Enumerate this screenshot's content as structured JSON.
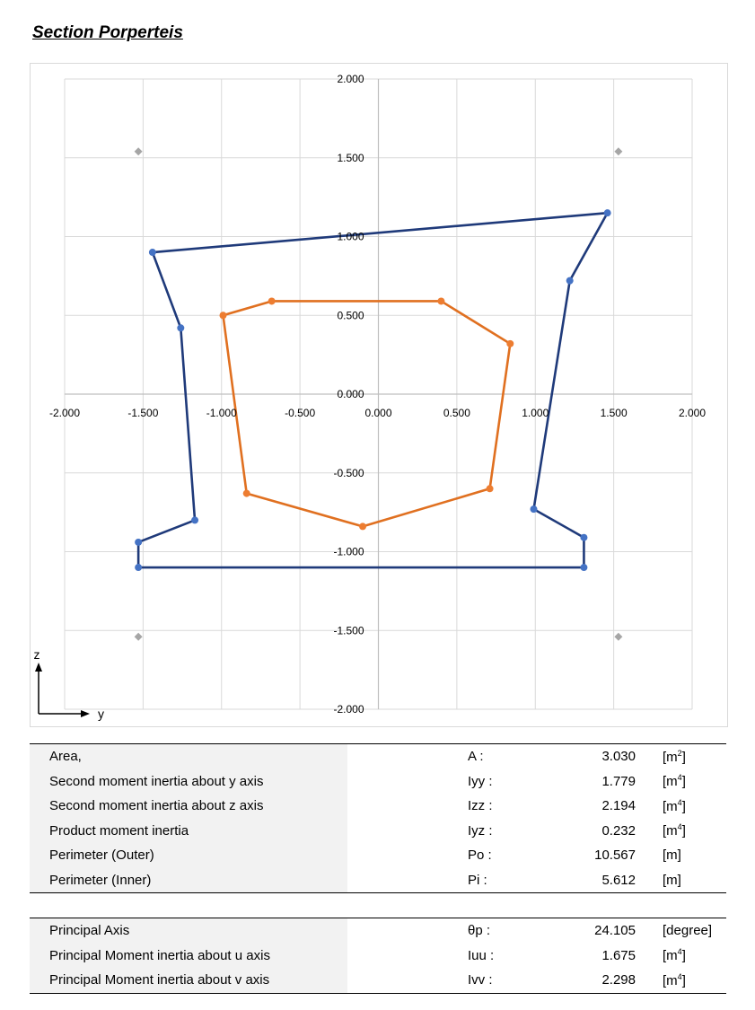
{
  "page_title": "Section Porperteis",
  "chart_data": {
    "type": "scatter",
    "title": "",
    "xlabel": "",
    "ylabel": "",
    "xlim": [
      -2.0,
      2.0
    ],
    "ylim": [
      -2.0,
      2.0
    ],
    "x_ticks": [
      "-2.000",
      "-1.500",
      "-1.000",
      "-0.500",
      "0.000",
      "0.500",
      "1.000",
      "1.500",
      "2.000"
    ],
    "y_ticks": [
      "2.000",
      "1.500",
      "1.000",
      "0.500",
      "0.000",
      "-0.500",
      "-1.000",
      "-1.500",
      "-2.000"
    ],
    "grid": true,
    "series": [
      {
        "color": "#1f3a7a",
        "marker_color": "#4472c4",
        "closed": true,
        "points": [
          [
            -1.44,
            0.9
          ],
          [
            1.46,
            1.15
          ],
          [
            1.22,
            0.72
          ],
          [
            0.99,
            -0.73
          ],
          [
            1.31,
            -0.91
          ],
          [
            1.31,
            -1.1
          ],
          [
            -1.53,
            -1.1
          ],
          [
            -1.53,
            -0.94
          ],
          [
            -1.17,
            -0.8
          ],
          [
            -1.26,
            0.42
          ]
        ]
      },
      {
        "color": "#e07020",
        "marker_color": "#ed7d31",
        "closed": true,
        "points": [
          [
            -0.68,
            0.59
          ],
          [
            0.4,
            0.59
          ],
          [
            0.84,
            0.32
          ],
          [
            0.71,
            -0.6
          ],
          [
            -0.1,
            -0.84
          ],
          [
            -0.84,
            -0.63
          ],
          [
            -0.99,
            0.5
          ]
        ]
      },
      {
        "color": "#a6a6a6",
        "marker_color": "#a6a6a6",
        "closed": false,
        "markers_only": true,
        "points": [
          [
            -1.53,
            1.54
          ],
          [
            1.53,
            1.54
          ],
          [
            -1.53,
            -1.54
          ],
          [
            1.53,
            -1.54
          ]
        ]
      }
    ]
  },
  "axis_indicator": {
    "z_label": "z",
    "y_label": "y"
  },
  "properties": [
    {
      "name": "Area,",
      "symbol": "A :",
      "value": "3.030",
      "unit_base": "[m",
      "unit_exp": "2",
      "unit_end": "]"
    },
    {
      "name": "Second moment inertia about y axis",
      "symbol": "Iyy :",
      "value": "1.779",
      "unit_base": "[m",
      "unit_exp": "4",
      "unit_end": "]"
    },
    {
      "name": "Second moment inertia about z axis",
      "symbol": "Izz :",
      "value": "2.194",
      "unit_base": "[m",
      "unit_exp": "4",
      "unit_end": "]"
    },
    {
      "name": "Product moment inertia",
      "symbol": "Iyz :",
      "value": "0.232",
      "unit_base": "[m",
      "unit_exp": "4",
      "unit_end": "]"
    },
    {
      "name": "Perimeter (Outer)",
      "symbol": "Po :",
      "value": "10.567",
      "unit_base": "[m]",
      "unit_exp": "",
      "unit_end": ""
    },
    {
      "name": "Perimeter (Inner)",
      "symbol": "Pi :",
      "value": "5.612",
      "unit_base": "[m]",
      "unit_exp": "",
      "unit_end": ""
    }
  ],
  "principal": [
    {
      "name": "Principal Axis",
      "symbol": "θp :",
      "value": "24.105",
      "unit_base": "[degree]",
      "unit_exp": "",
      "unit_end": ""
    },
    {
      "name": "Principal Moment inertia about u axis",
      "symbol": "Iuu :",
      "value": "1.675",
      "unit_base": "[m",
      "unit_exp": "4",
      "unit_end": "]"
    },
    {
      "name": "Principal Moment inertia about v axis",
      "symbol": "Ivv :",
      "value": "2.298",
      "unit_base": "[m",
      "unit_exp": "4",
      "unit_end": "]"
    }
  ]
}
